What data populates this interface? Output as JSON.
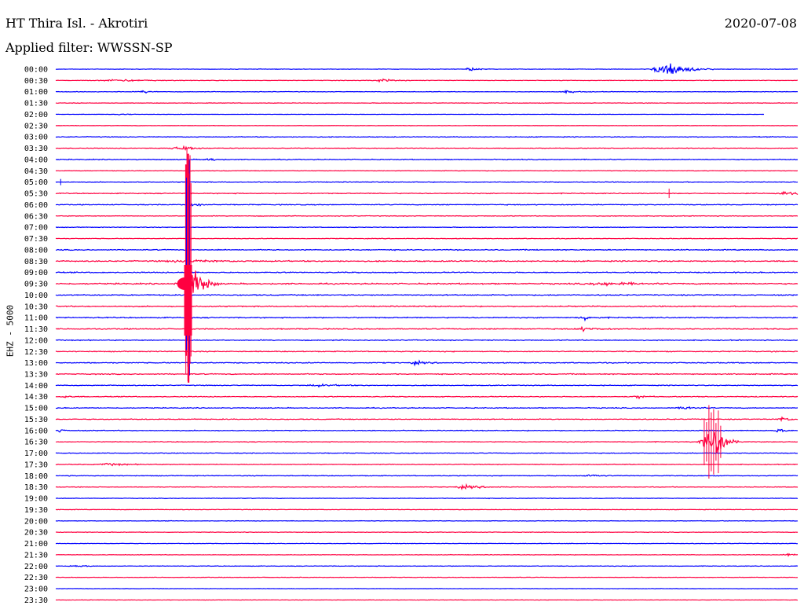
{
  "header": {
    "station": "HT Thira Isl. - Akrotiri",
    "date": "2020-07-08",
    "filter": "Applied filter: WWSSN-SP"
  },
  "channel_label": "EHZ - 5000",
  "colors": {
    "blue": "#0000ff",
    "red": "#ff0040",
    "background": "#ffffff",
    "text": "#000000"
  },
  "chart_data": {
    "type": "line",
    "title": "HT Thira Isl. - Akrotiri",
    "subtitle": "Applied filter: WWSSN-SP",
    "ylabel": "EHZ - 5000",
    "grid": false,
    "row_labels": [
      "00:00",
      "00:30",
      "01:00",
      "01:30",
      "02:00",
      "02:30",
      "03:00",
      "03:30",
      "04:00",
      "04:30",
      "05:00",
      "05:30",
      "06:00",
      "06:30",
      "07:00",
      "07:30",
      "08:00",
      "08:30",
      "09:00",
      "09:30",
      "10:00",
      "10:30",
      "11:00",
      "11:30",
      "12:00",
      "12:30",
      "13:00",
      "13:30",
      "14:00",
      "14:30",
      "15:00",
      "15:30",
      "16:00",
      "16:30",
      "17:00",
      "17:30",
      "18:00",
      "18:30",
      "19:00",
      "19:30",
      "20:00",
      "20:30",
      "21:00",
      "21:30",
      "22:00",
      "22:30",
      "23:00",
      "23:30"
    ],
    "row_colors": [
      "blue",
      "red",
      "blue",
      "red",
      "blue",
      "red",
      "blue",
      "red",
      "blue",
      "red",
      "blue",
      "red",
      "blue",
      "red",
      "blue",
      "red",
      "blue",
      "red",
      "blue",
      "red",
      "blue",
      "red",
      "blue",
      "red",
      "blue",
      "red",
      "blue",
      "red",
      "blue",
      "red",
      "blue",
      "red",
      "blue",
      "red",
      "blue",
      "red",
      "blue",
      "red",
      "blue",
      "red",
      "blue",
      "red",
      "blue",
      "red",
      "blue",
      "red",
      "blue",
      "red"
    ],
    "row_noise": [
      0.5,
      0.5,
      0.5,
      0.5,
      0.3,
      0.3,
      0.7,
      0.6,
      0.8,
      0.5,
      0.7,
      0.8,
      0.8,
      0.6,
      0.6,
      0.6,
      0.9,
      1.1,
      1.0,
      1.2,
      1.0,
      1.0,
      1.0,
      1.0,
      0.9,
      0.9,
      0.9,
      0.9,
      0.8,
      0.8,
      0.8,
      0.8,
      0.8,
      0.7,
      0.7,
      0.7,
      0.7,
      0.6,
      0.5,
      0.5,
      0.5,
      0.5,
      0.5,
      0.5,
      0.5,
      0.5,
      0.4,
      0.4
    ],
    "trace_span": [
      0,
      1
    ],
    "partial_rows": [
      {
        "row": 4,
        "end": 0.955
      }
    ],
    "x_range": [
      0,
      30
    ],
    "x_unit": "minutes",
    "events": [
      {
        "row": 0,
        "minute": 24.7,
        "amplitude": 16,
        "duration": 2.0
      },
      {
        "row": 0,
        "minute": 16.8,
        "amplitude": 3,
        "duration": 1.0
      },
      {
        "row": 1,
        "minute": 13.2,
        "amplitude": 3,
        "duration": 1.2
      },
      {
        "row": 1,
        "minute": 2.6,
        "amplitude": 2,
        "duration": 3.0
      },
      {
        "row": 2,
        "minute": 3.6,
        "amplitude": 2,
        "duration": 1.0
      },
      {
        "row": 2,
        "minute": 20.7,
        "amplitude": 2,
        "duration": 1.2
      },
      {
        "row": 4,
        "minute": 2.7,
        "amplitude": 2,
        "duration": 0.8
      },
      {
        "row": 7,
        "minute": 4.9,
        "amplitude": 2,
        "duration": 2.0
      },
      {
        "row": 7,
        "minute": 5.3,
        "amplitude": 4,
        "duration": 0.8
      },
      {
        "row": 8,
        "minute": 6.2,
        "amplitude": 3,
        "duration": 0.8
      },
      {
        "row": 11,
        "minute": 29.5,
        "amplitude": 3,
        "duration": 1.5
      },
      {
        "row": 12,
        "minute": 5.6,
        "amplitude": 3,
        "duration": 1.0
      },
      {
        "row": 17,
        "minute": 5.4,
        "amplitude": 2,
        "duration": 4.0
      },
      {
        "row": 19,
        "minute": 5.6,
        "amplitude": 34,
        "duration": 1.0
      },
      {
        "row": 19,
        "minute": 5.3,
        "amplitude": 8,
        "duration": 1.4
      },
      {
        "row": 19,
        "minute": 22.3,
        "amplitude": 3,
        "duration": 3.0
      },
      {
        "row": 22,
        "minute": 21.4,
        "amplitude": 4,
        "duration": 1.0
      },
      {
        "row": 23,
        "minute": 21.4,
        "amplitude": 3,
        "duration": 1.5
      },
      {
        "row": 26,
        "minute": 14.6,
        "amplitude": 3,
        "duration": 1.0
      },
      {
        "row": 28,
        "minute": 10.6,
        "amplitude": 2,
        "duration": 2.0
      },
      {
        "row": 29,
        "minute": 0.4,
        "amplitude": 2,
        "duration": 0.8
      },
      {
        "row": 29,
        "minute": 23.6,
        "amplitude": 3,
        "duration": 0.8
      },
      {
        "row": 30,
        "minute": 25.5,
        "amplitude": 3,
        "duration": 1.2
      },
      {
        "row": 31,
        "minute": 29.4,
        "amplitude": 3,
        "duration": 1.2
      },
      {
        "row": 32,
        "minute": 0.2,
        "amplitude": 3,
        "duration": 0.6
      },
      {
        "row": 32,
        "minute": 29.2,
        "amplitude": 3,
        "duration": 0.8
      },
      {
        "row": 33,
        "minute": 26.3,
        "amplitude": 18,
        "duration": 0.9
      },
      {
        "row": 33,
        "minute": 26.8,
        "amplitude": 28,
        "duration": 0.9
      },
      {
        "row": 35,
        "minute": 2.2,
        "amplitude": 2,
        "duration": 2.0
      },
      {
        "row": 36,
        "minute": 21.7,
        "amplitude": 2,
        "duration": 1.5
      },
      {
        "row": 37,
        "minute": 16.6,
        "amplitude": 3,
        "duration": 2.0
      },
      {
        "row": 43,
        "minute": 29.6,
        "amplitude": 2,
        "duration": 1.0
      },
      {
        "row": 44,
        "minute": 0.8,
        "amplitude": 2,
        "duration": 1.0
      }
    ],
    "spike_column": {
      "minute": 5.35,
      "from_row": 7,
      "to_row": 28,
      "note": "large local earthquake around 09:35"
    },
    "spikes": [
      {
        "row": 11,
        "minute": 24.8,
        "amplitude": 6
      },
      {
        "row": 10,
        "minute": 0.2,
        "amplitude": 4
      }
    ]
  }
}
